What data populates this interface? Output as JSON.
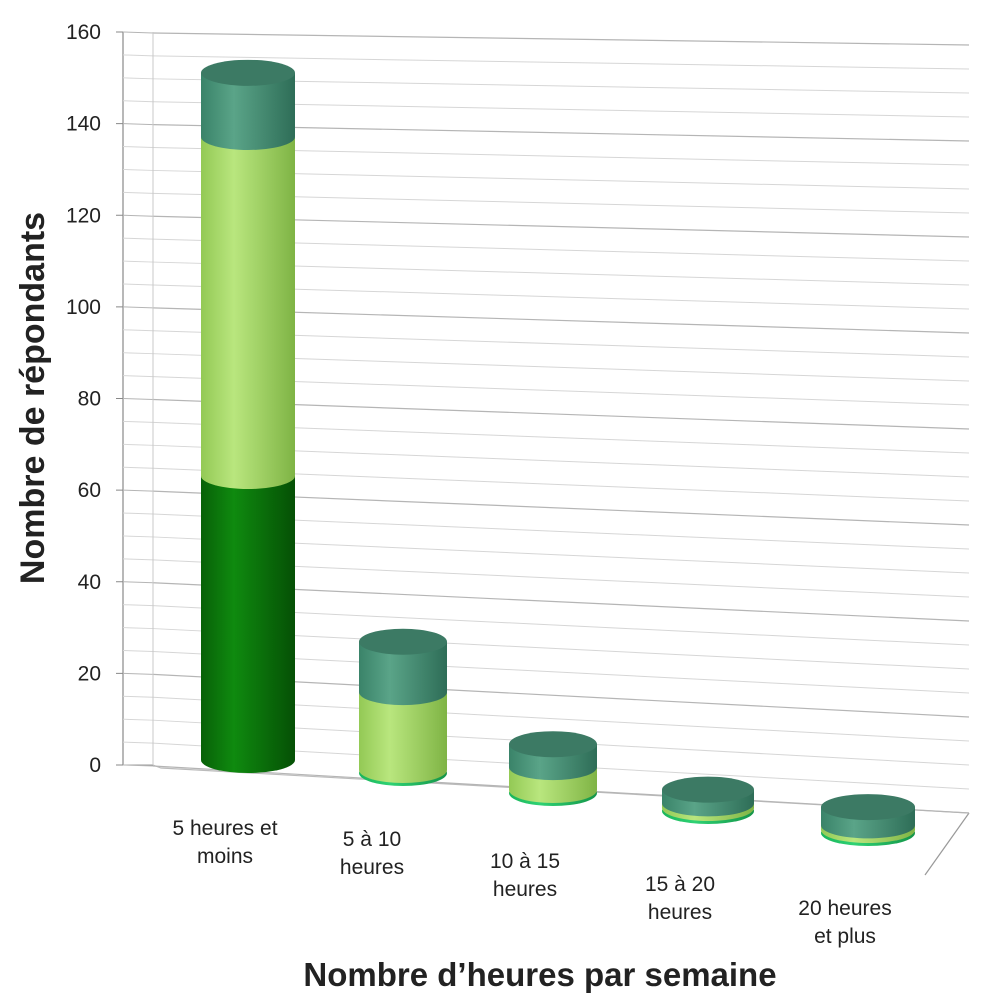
{
  "chart_data": {
    "type": "bar",
    "style": "3d-stacked-cylinder",
    "categories": [
      [
        "5 heures et",
        "moins"
      ],
      [
        "5 à 10",
        "heures"
      ],
      [
        "10 à 15",
        "heures"
      ],
      [
        "15 à 20",
        "heures"
      ],
      [
        "20 heures",
        "et plus"
      ]
    ],
    "series": [
      {
        "values": [
          62,
          0,
          0,
          0,
          0
        ],
        "color": "#0b7a0b"
      },
      {
        "values": [
          74,
          17,
          5,
          1,
          1
        ],
        "color": "#a8dc68"
      },
      {
        "values": [
          14,
          11,
          5,
          3,
          4
        ],
        "color": "#3f8f74"
      }
    ],
    "xlabel": "Nombre d’heures par semaine",
    "ylabel": "Nombre de répondants",
    "ylim": [
      0,
      160
    ],
    "yticks": [
      "0",
      "20",
      "40",
      "60",
      "80",
      "100",
      "120",
      "140",
      "160"
    ],
    "grid": true,
    "legend": "none"
  }
}
